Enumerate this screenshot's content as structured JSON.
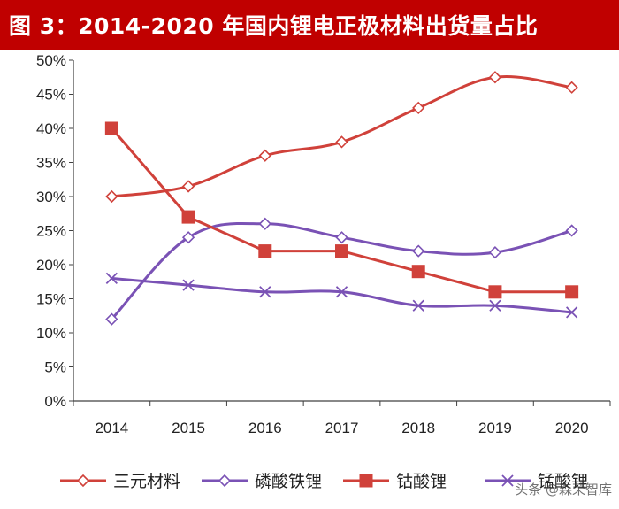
{
  "header": {
    "title": "图 3：2014-2020 年国内锂电正极材料出货量占比"
  },
  "colors": {
    "title_bg": "#c00000",
    "red": "#d0413a",
    "purple": "#7a52b5"
  },
  "watermark": "头条 @森荣智库",
  "chart_data": {
    "type": "line",
    "title": "2014-2020 年国内锂电正极材料出货量占比",
    "categories": [
      "2014",
      "2015",
      "2016",
      "2017",
      "2018",
      "2019",
      "2020"
    ],
    "ylim": [
      0,
      50
    ],
    "yticks": [
      "0%",
      "5%",
      "10%",
      "15%",
      "20%",
      "25%",
      "30%",
      "35%",
      "40%",
      "45%",
      "50%"
    ],
    "xlabel": "",
    "ylabel": "",
    "grid": false,
    "legend_position": "bottom",
    "series": [
      {
        "name": "三元材料",
        "values": [
          30,
          31.5,
          36,
          38,
          43,
          47.5,
          46
        ],
        "marker": "diamond",
        "color": "#d0413a"
      },
      {
        "name": "磷酸铁锂",
        "values": [
          12,
          24,
          26,
          24,
          22,
          21.8,
          25
        ],
        "marker": "diamond",
        "color": "#7a52b5"
      },
      {
        "name": "钴酸锂",
        "values": [
          40,
          27,
          22,
          22,
          19,
          16,
          16
        ],
        "marker": "square",
        "color": "#d0413a"
      },
      {
        "name": "锰酸锂",
        "values": [
          18,
          17,
          16,
          16,
          14,
          14,
          13
        ],
        "marker": "x",
        "color": "#7a52b5"
      }
    ]
  }
}
